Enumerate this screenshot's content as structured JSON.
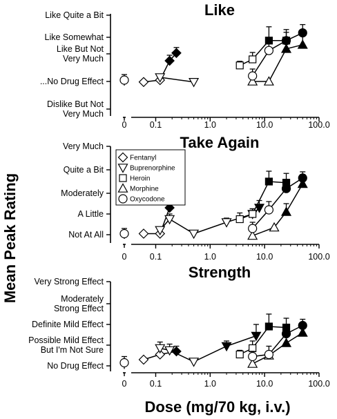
{
  "chart_data": {
    "type": "line",
    "ylabel": "Mean Peak Rating",
    "xlabel": "Dose (mg/70 kg, i.v.)",
    "x_scale": "log",
    "x_ticks": [
      "0",
      "0.1",
      "1.0",
      "10.0",
      "100.0"
    ],
    "legend": {
      "placement": "top-left of Take Again panel",
      "entries": [
        {
          "name": "Fentanyl",
          "marker": "diamond"
        },
        {
          "name": "Buprenorphine",
          "marker": "triangle-down"
        },
        {
          "name": "Heroin",
          "marker": "square"
        },
        {
          "name": "Morphine",
          "marker": "triangle-up"
        },
        {
          "name": "Oxycodone",
          "marker": "circle"
        }
      ]
    },
    "panels": [
      {
        "title": "Like",
        "y_ticks": [
          "Dislike But Not\nVery Much",
          "...No Drug Effect",
          "Like But Not\nVery Much",
          "Like Somewhat",
          "Like Quite a Bit"
        ],
        "ylim": [
          -1,
          3
        ],
        "placebo": {
          "y": 0.05,
          "err": 0.2
        },
        "series": [
          {
            "name": "Fentanyl",
            "marker": "diamond",
            "points": [
              {
                "x": 0.06,
                "y": -0.02
              },
              {
                "x": 0.12,
                "y": 0.05
              },
              {
                "x": 0.18,
                "y": 0.75,
                "err": 0.2
              },
              {
                "x": 0.24,
                "y": 1.05,
                "err": 0.2
              }
            ]
          },
          {
            "name": "Buprenorphine",
            "marker": "triangle-down",
            "points": [
              {
                "x": 0.12,
                "y": 0.15,
                "err": 0.12
              },
              {
                "x": 0.5,
                "y": -0.02
              }
            ]
          },
          {
            "name": "Heroin",
            "marker": "square",
            "points": [
              {
                "x": 3.5,
                "y": 0.58,
                "err": 0.15
              },
              {
                "x": 6,
                "y": 0.8,
                "err": 0.25
              },
              {
                "x": 12,
                "y": 1.8,
                "err": 0.5
              },
              {
                "x": 25,
                "y": 1.8,
                "err": 0.4
              }
            ]
          },
          {
            "name": "Morphine",
            "marker": "triangle-up",
            "points": [
              {
                "x": 6,
                "y": 0
              },
              {
                "x": 12,
                "y": 0
              },
              {
                "x": 25,
                "y": 1.3,
                "err": 0.35
              },
              {
                "x": 50,
                "y": 1.55,
                "err": 0.35
              }
            ]
          },
          {
            "name": "Oxycodone",
            "marker": "circle",
            "points": [
              {
                "x": 6,
                "y": 0.2,
                "err": 0.25
              },
              {
                "x": 12,
                "y": 1.2,
                "err": 0.4
              },
              {
                "x": 25,
                "y": 1.8,
                "err": 0.3
              },
              {
                "x": 50,
                "y": 2.2,
                "err": 0.3
              }
            ]
          }
        ]
      },
      {
        "title": "Take Again",
        "y_ticks": [
          "Not At All",
          "A Little",
          "Moderately",
          "Quite a Bit",
          "Very Much"
        ],
        "ylim": [
          0,
          4
        ],
        "placebo": {
          "y": 0.05,
          "err": 0.25
        },
        "series": [
          {
            "name": "Fentanyl",
            "marker": "diamond",
            "points": [
              {
                "x": 0.06,
                "y": 0.05
              },
              {
                "x": 0.12,
                "y": 0.05
              },
              {
                "x": 0.18,
                "y": 1.3,
                "err": 0.3
              },
              {
                "x": 0.24,
                "y": 1.8,
                "err": 0.45
              }
            ]
          },
          {
            "name": "Buprenorphine",
            "marker": "triangle-down",
            "points": [
              {
                "x": 0.12,
                "y": 0.22,
                "err": 0.15
              },
              {
                "x": 0.18,
                "y": 0.75,
                "err": 0.25
              },
              {
                "x": 0.5,
                "y": 0.05
              },
              {
                "x": 2,
                "y": 0.6,
                "err": 0.2
              },
              {
                "x": 6,
                "y": 1.0,
                "err": 0.25
              },
              {
                "x": 8,
                "y": 1.3,
                "err": 0.35
              }
            ]
          },
          {
            "name": "Heroin",
            "marker": "square",
            "points": [
              {
                "x": 3.5,
                "y": 0.75,
                "err": 0.3
              },
              {
                "x": 6,
                "y": 1.0,
                "err": 0.25
              },
              {
                "x": 12,
                "y": 2.5,
                "err": 0.5
              },
              {
                "x": 25,
                "y": 2.45,
                "err": 0.45
              }
            ]
          },
          {
            "name": "Morphine",
            "marker": "triangle-up",
            "points": [
              {
                "x": 6,
                "y": -0.05
              },
              {
                "x": 15,
                "y": 0.35
              },
              {
                "x": 25,
                "y": 1.1,
                "err": 0.4
              },
              {
                "x": 50,
                "y": 2.4,
                "err": 0.45
              }
            ]
          },
          {
            "name": "Oxycodone",
            "marker": "circle",
            "points": [
              {
                "x": 6,
                "y": 0.3,
                "err": 0.3
              },
              {
                "x": 12,
                "y": 1.2,
                "err": 0.4
              },
              {
                "x": 25,
                "y": 2.2,
                "err": 0.35
              },
              {
                "x": 50,
                "y": 2.65,
                "err": 0.3
              }
            ]
          }
        ]
      },
      {
        "title": "Strength",
        "y_ticks": [
          "No Drug Effect",
          "Possible Mild Effect\nBut I'm Not Sure",
          "Definite Mild Effect",
          "Moderately\nStrong Effect",
          "Very Strong Effect"
        ],
        "ylim": [
          0,
          4
        ],
        "placebo": {
          "y": 0.15,
          "err": 0.3
        },
        "series": [
          {
            "name": "Fentanyl",
            "marker": "diamond",
            "points": [
              {
                "x": 0.06,
                "y": 0.3
              },
              {
                "x": 0.12,
                "y": 0.55,
                "err": 0.3
              },
              {
                "x": 0.24,
                "y": 0.7,
                "err": 0.25
              }
            ]
          },
          {
            "name": "Buprenorphine",
            "marker": "triangle-down",
            "points": [
              {
                "x": 0.12,
                "y": 0.85,
                "err": 0.3
              },
              {
                "x": 0.18,
                "y": 0.75,
                "err": 0.3
              },
              {
                "x": 0.5,
                "y": 0.2
              },
              {
                "x": 2,
                "y": 0.95,
                "err": 0.25
              },
              {
                "x": 7,
                "y": 1.45,
                "err": 0.55
              }
            ]
          },
          {
            "name": "Heroin",
            "marker": "square",
            "points": [
              {
                "x": 3.5,
                "y": 0.55,
                "err": 0.2
              },
              {
                "x": 6,
                "y": 0.85,
                "err": 0.35
              },
              {
                "x": 12,
                "y": 1.9,
                "err": 0.6
              },
              {
                "x": 25,
                "y": 1.85,
                "err": 0.45
              }
            ]
          },
          {
            "name": "Morphine",
            "marker": "triangle-up",
            "points": [
              {
                "x": 6,
                "y": 0.1
              },
              {
                "x": 12,
                "y": 0.5
              },
              {
                "x": 25,
                "y": 1.1,
                "err": 0.35
              },
              {
                "x": 50,
                "y": 1.6,
                "err": 0.35
              }
            ]
          },
          {
            "name": "Oxycodone",
            "marker": "circle",
            "points": [
              {
                "x": 6,
                "y": 0.45,
                "err": 0.25
              },
              {
                "x": 12,
                "y": 0.55,
                "err": 0.4
              },
              {
                "x": 25,
                "y": 1.55,
                "err": 0.35
              },
              {
                "x": 50,
                "y": 1.95,
                "err": 0.3
              }
            ]
          }
        ]
      }
    ]
  }
}
